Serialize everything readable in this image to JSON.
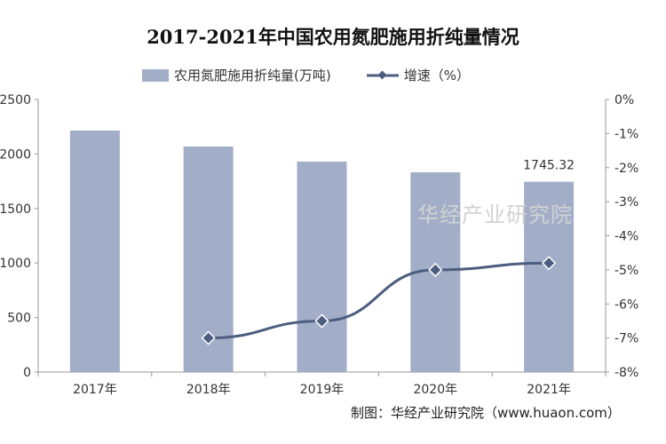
{
  "chart_data": {
    "type": "bar+line",
    "title": "2017-2021年中国农用氮肥施用折纯量情况",
    "categories": [
      "2017年",
      "2018年",
      "2019年",
      "2020年",
      "2021年"
    ],
    "series": [
      {
        "name": "农用氮肥施用折纯量(万吨)",
        "type": "bar",
        "axis": "left",
        "values": [
          2215,
          2068,
          1930,
          1832,
          1745.32
        ],
        "color": "#a2aec8"
      },
      {
        "name": "增速（%）",
        "type": "line",
        "axis": "right",
        "values": [
          null,
          -7.0,
          -6.5,
          -5.0,
          -4.8
        ],
        "color": "#4d5d80"
      }
    ],
    "data_labels": [
      {
        "category": "2021年",
        "text": "1745.32"
      }
    ],
    "y_left": {
      "ylim": [
        0,
        2500
      ],
      "ticks": [
        "0",
        "500",
        "1000",
        "1500",
        "2000",
        "2500"
      ]
    },
    "y_right": {
      "ylim": [
        -8,
        0
      ],
      "ticks": [
        "-8%",
        "-7%",
        "-6%",
        "-5%",
        "-4%",
        "-3%",
        "-2%",
        "-1%",
        "0%"
      ]
    },
    "grid": false,
    "legend": "top"
  },
  "source": "制图：华经产业研究院（www.huaon.com）",
  "watermark": "华经产业研究院"
}
